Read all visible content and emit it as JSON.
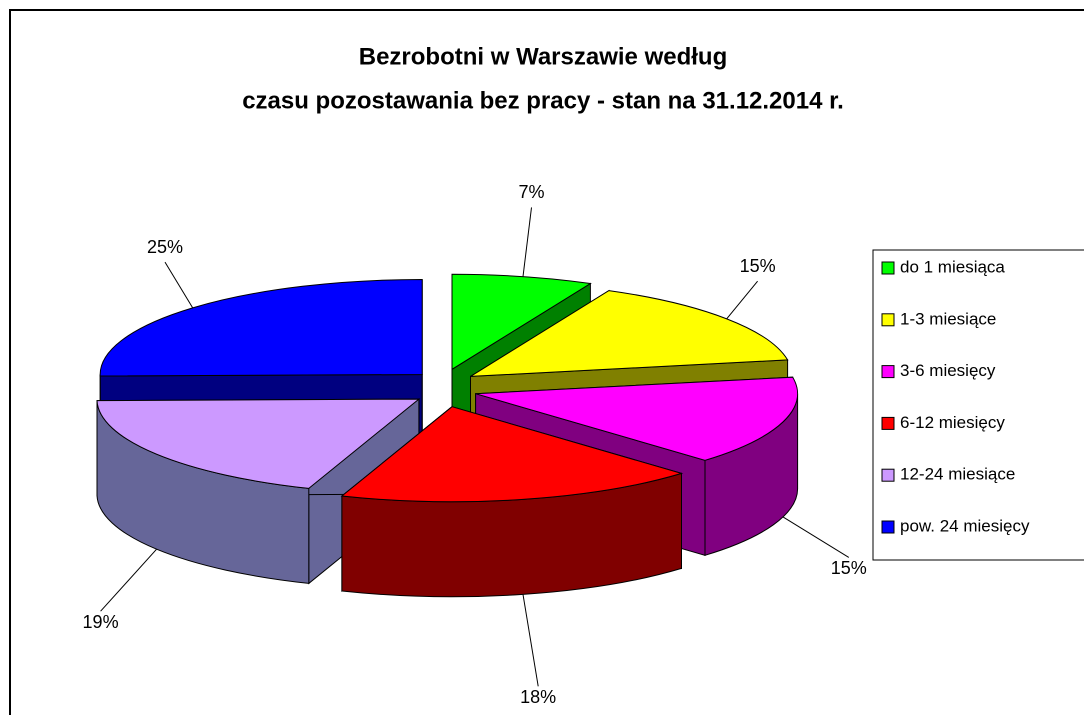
{
  "chart_data": {
    "type": "pie3d",
    "title": [
      "Bezrobotni w Warszawie według",
      "czasu pozostawania bez pracy - stan na 31.12.2014 r."
    ],
    "categories": [
      "do 1 miesiąca",
      "1-3 miesiące",
      "3-6 miesięcy",
      "6-12 miesięcy",
      "12-24 miesiące",
      "pow. 24 miesięcy"
    ],
    "values": [
      7,
      15,
      15,
      18,
      19,
      25
    ],
    "value_labels": [
      "7%",
      "15%",
      "15%",
      "18%",
      "19%",
      "25%"
    ],
    "colors": [
      "#00ff00",
      "#ffff00",
      "#ff00ff",
      "#ff0000",
      "#cc99ff",
      "#0000ff"
    ],
    "side_colors": [
      "#008000",
      "#808000",
      "#800080",
      "#800000",
      "#666699",
      "#000080"
    ],
    "legend": "right"
  }
}
